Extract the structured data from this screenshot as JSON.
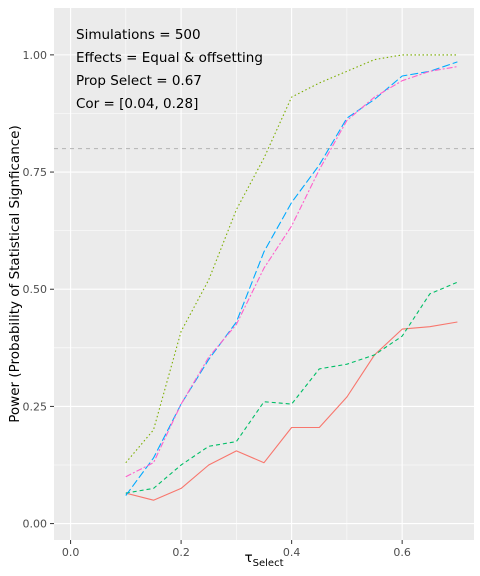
{
  "chart_data": {
    "type": "line",
    "title": "",
    "xlabel_main": "τ",
    "xlabel_sub": "Select",
    "ylabel": "Power (Probability of Statistical Signficance)",
    "xlim": [
      -0.03,
      0.73
    ],
    "ylim": [
      -0.035,
      1.1
    ],
    "x_ticks": [
      0.0,
      0.2,
      0.4,
      0.6
    ],
    "x_tick_labels": [
      "0.0",
      "0.2",
      "0.4",
      "0.6"
    ],
    "y_ticks": [
      0.0,
      0.25,
      0.5,
      0.75,
      1.0
    ],
    "y_tick_labels": [
      "0.00",
      "0.25",
      "0.50",
      "0.75",
      "1.00"
    ],
    "grid": true,
    "panel_background": "#ebebeb",
    "grid_color": "#ffffff",
    "legend": "none",
    "reference_line": {
      "y": 0.8,
      "style": "dashed",
      "color": "#b3b3b3"
    },
    "annotations": [
      "Simulations = 500",
      "Effects = Equal & offsetting",
      "Prop Select = 0.67",
      "Cor = [0.04, 0.28]"
    ],
    "x": [
      0.1,
      0.15,
      0.2,
      0.25,
      0.3,
      0.35,
      0.4,
      0.45,
      0.5,
      0.55,
      0.6,
      0.65,
      0.7
    ],
    "series": [
      {
        "color": "#f8766d",
        "dash": "solid",
        "values": [
          0.065,
          0.05,
          0.075,
          0.125,
          0.155,
          0.13,
          0.205,
          0.205,
          0.27,
          0.36,
          0.415,
          0.42,
          0.43
        ]
      },
      {
        "color": "#7cae00",
        "dash": "dotted",
        "values": [
          0.13,
          0.2,
          0.41,
          0.52,
          0.67,
          0.78,
          0.91,
          0.94,
          0.965,
          0.99,
          1.0,
          1.0,
          1.0
        ]
      },
      {
        "color": "#00be67",
        "dash": "dashed",
        "values": [
          0.065,
          0.075,
          0.125,
          0.165,
          0.175,
          0.26,
          0.255,
          0.33,
          0.34,
          0.36,
          0.4,
          0.49,
          0.515
        ]
      },
      {
        "color": "#00a9ff",
        "dash": "longdash",
        "values": [
          0.06,
          0.14,
          0.255,
          0.35,
          0.43,
          0.58,
          0.685,
          0.765,
          0.865,
          0.905,
          0.955,
          0.965,
          0.985
        ]
      },
      {
        "color": "#ff61cc",
        "dash": "twodash",
        "values": [
          0.1,
          0.13,
          0.255,
          0.355,
          0.425,
          0.545,
          0.635,
          0.755,
          0.86,
          0.91,
          0.945,
          0.965,
          0.975
        ]
      }
    ]
  }
}
